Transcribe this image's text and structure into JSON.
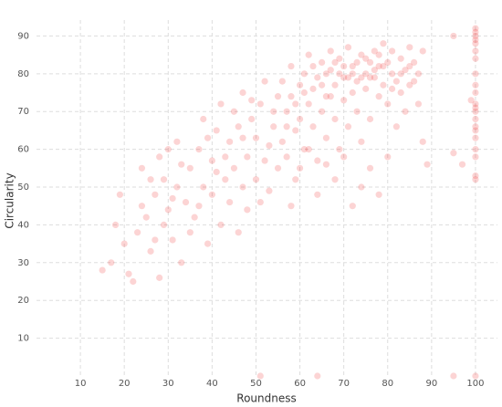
{
  "chart_data": {
    "type": "scatter",
    "x_label": "Roundness",
    "y_label": "Circularity",
    "color": "#f03c3c",
    "grid": true,
    "xlim": [
      0,
      105
    ],
    "ylim": [
      0,
      93
    ],
    "xticks": [
      10,
      20,
      30,
      40,
      50,
      60,
      70,
      80,
      90,
      100
    ],
    "yticks": [
      10,
      20,
      30,
      40,
      50,
      60,
      70,
      80,
      90
    ],
    "x": [
      15,
      17,
      18,
      19,
      20,
      21,
      22,
      23,
      24,
      24,
      25,
      26,
      26,
      27,
      28,
      28,
      29,
      30,
      30,
      31,
      32,
      32,
      33,
      34,
      35,
      35,
      33,
      29,
      27,
      31,
      36,
      37,
      38,
      38,
      39,
      40,
      40,
      41,
      42,
      42,
      43,
      44,
      44,
      45,
      45,
      46,
      46,
      47,
      47,
      48,
      48,
      49,
      50,
      50,
      51,
      51,
      52,
      52,
      53,
      53,
      54,
      54,
      55,
      55,
      43,
      47,
      49,
      41,
      39,
      37,
      56,
      56,
      57,
      57,
      58,
      58,
      59,
      59,
      60,
      60,
      61,
      61,
      62,
      62,
      63,
      63,
      64,
      64,
      65,
      65,
      66,
      66,
      67,
      67,
      68,
      68,
      69,
      69,
      70,
      70,
      71,
      71,
      72,
      72,
      73,
      73,
      74,
      74,
      75,
      75,
      76,
      76,
      77,
      77,
      78,
      78,
      79,
      79,
      80,
      80,
      81,
      81,
      82,
      83,
      83,
      84,
      85,
      85,
      86,
      87,
      88,
      88,
      89,
      87,
      84,
      82,
      80,
      78,
      76,
      74,
      72,
      70,
      68,
      66,
      64,
      62,
      60,
      58,
      57,
      59,
      61,
      63,
      65,
      67,
      69,
      71,
      73,
      75,
      77,
      79,
      81,
      83,
      85,
      86,
      70,
      72,
      74,
      66,
      68,
      76,
      78,
      100,
      100,
      100,
      100,
      100,
      100,
      100,
      100,
      100,
      100,
      100,
      100,
      100,
      100,
      100,
      100,
      100,
      100,
      100,
      100,
      100,
      95,
      95,
      97,
      99,
      51,
      64,
      95,
      100
    ],
    "values": [
      28,
      30,
      40,
      48,
      35,
      27,
      25,
      38,
      55,
      45,
      42,
      33,
      52,
      48,
      26,
      58,
      40,
      44,
      60,
      36,
      50,
      62,
      30,
      46,
      55,
      38,
      56,
      52,
      36,
      47,
      42,
      60,
      50,
      68,
      35,
      48,
      57,
      65,
      40,
      72,
      52,
      46,
      62,
      55,
      70,
      38,
      66,
      50,
      75,
      58,
      44,
      68,
      52,
      63,
      72,
      46,
      57,
      78,
      61,
      49,
      70,
      66,
      55,
      74,
      58,
      63,
      73,
      54,
      63,
      45,
      62,
      78,
      70,
      58,
      74,
      82,
      65,
      52,
      77,
      68,
      80,
      60,
      72,
      85,
      66,
      76,
      79,
      57,
      83,
      70,
      74,
      63,
      81,
      86,
      77,
      68,
      84,
      60,
      79,
      73,
      87,
      66,
      82,
      75,
      78,
      70,
      85,
      62,
      80,
      76,
      83,
      68,
      79,
      86,
      74,
      82,
      77,
      88,
      83,
      72,
      80,
      86,
      78,
      84,
      75,
      81,
      87,
      77,
      83,
      80,
      86,
      62,
      56,
      72,
      70,
      66,
      58,
      48,
      55,
      50,
      45,
      58,
      52,
      56,
      48,
      60,
      55,
      45,
      66,
      72,
      75,
      82,
      77,
      74,
      80,
      79,
      83,
      84,
      81,
      82,
      76,
      80,
      82,
      78,
      82,
      80,
      79,
      80,
      83,
      79,
      85,
      52,
      53,
      58,
      60,
      63,
      65,
      66,
      68,
      70,
      71,
      72,
      75,
      77,
      80,
      84,
      86,
      88,
      89,
      90,
      91,
      92,
      90,
      59,
      56,
      73,
      0,
      0,
      0,
      0
    ]
  }
}
